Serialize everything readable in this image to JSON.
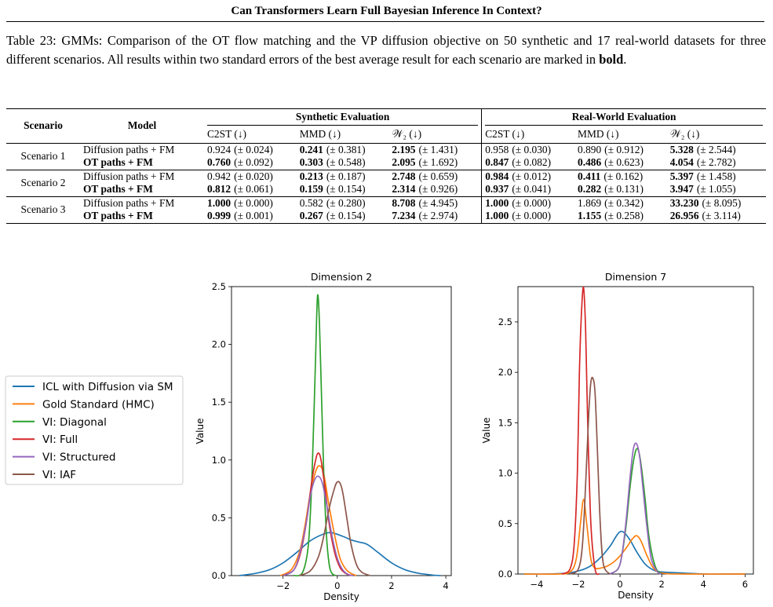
{
  "header": {
    "title": "Can Transformers Learn Full Bayesian Inference In Context?"
  },
  "caption": {
    "text_before": "Table 23: GMMs: Comparison of the OT flow matching and the VP diffusion objective on 50 synthetic and 17 real-world datasets for three different scenarios. All results within two standard errors of the best average result for each scenario are marked in ",
    "bold_word": "bold",
    "text_after": "."
  },
  "table": {
    "col_scenario": "Scenario",
    "col_model": "Model",
    "group_synthetic": "Synthetic Evaluation",
    "group_real": "Real-World Evaluation",
    "metrics": [
      "C2ST (↓)",
      "MMD (↓)",
      "𝒲₂ (↓)"
    ],
    "rows": [
      {
        "scenario": "Scenario 1",
        "model": "Diffusion paths + FM",
        "model_bold": false,
        "cells": [
          {
            "v": "0.924",
            "se": "(± 0.024)",
            "b": false
          },
          {
            "v": "0.241",
            "se": "(± 0.381)",
            "b": true
          },
          {
            "v": "2.195",
            "se": "(± 1.431)",
            "b": true
          },
          {
            "v": "0.958",
            "se": "(± 0.030)",
            "b": false
          },
          {
            "v": "0.890",
            "se": "(± 0.912)",
            "b": false
          },
          {
            "v": "5.328",
            "se": "(± 2.544)",
            "b": true
          }
        ]
      },
      {
        "scenario": "",
        "model": "OT paths + FM",
        "model_bold": true,
        "cells": [
          {
            "v": "0.760",
            "se": "(± 0.092)",
            "b": true
          },
          {
            "v": "0.303",
            "se": "(± 0.548)",
            "b": true
          },
          {
            "v": "2.095",
            "se": "(± 1.692)",
            "b": true
          },
          {
            "v": "0.847",
            "se": "(± 0.082)",
            "b": true
          },
          {
            "v": "0.486",
            "se": "(± 0.623)",
            "b": true
          },
          {
            "v": "4.054",
            "se": "(± 2.782)",
            "b": true
          }
        ]
      },
      {
        "scenario": "Scenario 2",
        "model": "Diffusion paths + FM",
        "model_bold": false,
        "cells": [
          {
            "v": "0.942",
            "se": "(± 0.020)",
            "b": false
          },
          {
            "v": "0.213",
            "se": "(± 0.187)",
            "b": true
          },
          {
            "v": "2.748",
            "se": "(± 0.659)",
            "b": true
          },
          {
            "v": "0.984",
            "se": "(± 0.012)",
            "b": true
          },
          {
            "v": "0.411",
            "se": "(± 0.162)",
            "b": true
          },
          {
            "v": "5.397",
            "se": "(± 1.458)",
            "b": true
          }
        ]
      },
      {
        "scenario": "",
        "model": "OT paths + FM",
        "model_bold": true,
        "cells": [
          {
            "v": "0.812",
            "se": "(± 0.061)",
            "b": true
          },
          {
            "v": "0.159",
            "se": "(± 0.154)",
            "b": true
          },
          {
            "v": "2.314",
            "se": "(± 0.926)",
            "b": true
          },
          {
            "v": "0.937",
            "se": "(± 0.041)",
            "b": true
          },
          {
            "v": "0.282",
            "se": "(± 0.131)",
            "b": true
          },
          {
            "v": "3.947",
            "se": "(± 1.055)",
            "b": true
          }
        ]
      },
      {
        "scenario": "Scenario 3",
        "model": "Diffusion paths + FM",
        "model_bold": false,
        "cells": [
          {
            "v": "1.000",
            "se": "(± 0.000)",
            "b": true
          },
          {
            "v": "0.582",
            "se": "(± 0.280)",
            "b": false
          },
          {
            "v": "8.708",
            "se": "(± 4.945)",
            "b": true
          },
          {
            "v": "1.000",
            "se": "(± 0.000)",
            "b": true
          },
          {
            "v": "1.869",
            "se": "(± 0.342)",
            "b": false
          },
          {
            "v": "33.230",
            "se": "(± 8.095)",
            "b": true
          }
        ]
      },
      {
        "scenario": "",
        "model": "OT paths + FM",
        "model_bold": true,
        "cells": [
          {
            "v": "0.999",
            "se": "(± 0.001)",
            "b": true
          },
          {
            "v": "0.267",
            "se": "(± 0.154)",
            "b": true
          },
          {
            "v": "7.234",
            "se": "(± 2.974)",
            "b": true
          },
          {
            "v": "1.000",
            "se": "(± 0.000)",
            "b": true
          },
          {
            "v": "1.155",
            "se": "(± 0.258)",
            "b": true
          },
          {
            "v": "26.956",
            "se": "(± 3.114)",
            "b": true
          }
        ]
      }
    ]
  },
  "legend": {
    "entries": [
      {
        "label": "ICL with Diffusion via SM",
        "color": "#1f77b4"
      },
      {
        "label": "Gold Standard (HMC)",
        "color": "#ff7f0e"
      },
      {
        "label": "VI: Diagonal",
        "color": "#2ca02c"
      },
      {
        "label": "VI: Full",
        "color": "#d62728"
      },
      {
        "label": "VI: Structured",
        "color": "#9467bd"
      },
      {
        "label": "VI: IAF",
        "color": "#8c564b"
      }
    ]
  },
  "chart_data": [
    {
      "type": "line",
      "title": "Dimension 2",
      "xlabel": "Density",
      "ylabel": "Value",
      "xlim": [
        -3.9,
        4.2
      ],
      "ylim": [
        0,
        2.5
      ],
      "xticks": [
        -2,
        0,
        2,
        4
      ],
      "yticks": [
        0.0,
        0.5,
        1.0,
        1.5,
        2.0,
        2.5
      ],
      "series": [
        {
          "name": "ICL with Diffusion via SM",
          "color": "#1f77b4",
          "x": [
            -3.6,
            -3.0,
            -2.5,
            -2.0,
            -1.5,
            -1.0,
            -0.5,
            -0.2,
            0.2,
            0.5,
            0.8,
            1.1,
            1.5,
            2.0,
            2.5,
            3.0,
            3.5,
            3.8
          ],
          "y": [
            0.0,
            0.02,
            0.05,
            0.11,
            0.2,
            0.3,
            0.36,
            0.37,
            0.34,
            0.31,
            0.29,
            0.27,
            0.2,
            0.11,
            0.05,
            0.02,
            0.005,
            0.0
          ]
        },
        {
          "name": "Gold Standard (HMC)",
          "color": "#ff7f0e",
          "x": [
            -2.1,
            -1.7,
            -1.4,
            -1.2,
            -1.0,
            -0.8,
            -0.65,
            -0.5,
            -0.3,
            -0.1,
            0.1,
            0.3,
            0.5,
            0.7
          ],
          "y": [
            0.0,
            0.05,
            0.2,
            0.42,
            0.7,
            0.9,
            0.95,
            0.88,
            0.6,
            0.35,
            0.15,
            0.06,
            0.02,
            0.0
          ]
        },
        {
          "name": "VI: Diagonal",
          "color": "#2ca02c",
          "x": [
            -1.6,
            -1.3,
            -1.1,
            -1.0,
            -0.9,
            -0.8,
            -0.73,
            -0.66,
            -0.6,
            -0.5,
            -0.4,
            -0.3,
            -0.2,
            -0.05
          ],
          "y": [
            0.0,
            0.02,
            0.2,
            0.5,
            1.1,
            1.9,
            2.42,
            2.2,
            1.7,
            0.9,
            0.35,
            0.1,
            0.02,
            0.0
          ]
        },
        {
          "name": "VI: Full",
          "color": "#d62728",
          "x": [
            -2.0,
            -1.6,
            -1.35,
            -1.15,
            -0.95,
            -0.8,
            -0.7,
            -0.6,
            -0.45,
            -0.3,
            -0.1,
            0.1,
            0.3,
            0.5
          ],
          "y": [
            0.0,
            0.05,
            0.2,
            0.45,
            0.8,
            1.0,
            1.06,
            1.0,
            0.75,
            0.45,
            0.2,
            0.07,
            0.02,
            0.0
          ]
        },
        {
          "name": "VI: Structured",
          "color": "#9467bd",
          "x": [
            -2.0,
            -1.6,
            -1.35,
            -1.15,
            -1.0,
            -0.85,
            -0.7,
            -0.55,
            -0.4,
            -0.2,
            0.0,
            0.2,
            0.4,
            0.6
          ],
          "y": [
            0.0,
            0.05,
            0.22,
            0.45,
            0.68,
            0.82,
            0.86,
            0.8,
            0.62,
            0.35,
            0.15,
            0.05,
            0.01,
            0.0
          ]
        },
        {
          "name": "VI: IAF",
          "color": "#8c564b",
          "x": [
            -1.4,
            -1.0,
            -0.7,
            -0.5,
            -0.3,
            -0.1,
            0.0,
            0.1,
            0.2,
            0.35,
            0.5,
            0.7,
            0.9,
            1.2
          ],
          "y": [
            0.0,
            0.04,
            0.16,
            0.34,
            0.58,
            0.76,
            0.81,
            0.8,
            0.72,
            0.5,
            0.28,
            0.1,
            0.03,
            0.0
          ]
        }
      ]
    },
    {
      "type": "line",
      "title": "Dimension 7",
      "xlabel": "Density",
      "ylabel": "Value",
      "xlim": [
        -4.9,
        6.4
      ],
      "ylim": [
        0,
        2.85
      ],
      "xticks": [
        -4,
        -2,
        0,
        2,
        4,
        6
      ],
      "yticks": [
        0.0,
        0.5,
        1.0,
        1.5,
        2.0,
        2.5
      ],
      "series": [
        {
          "name": "ICL with Diffusion via SM",
          "color": "#1f77b4",
          "x": [
            -4.6,
            -3.5,
            -2.5,
            -2.0,
            -1.5,
            -1.0,
            -0.5,
            -0.2,
            0.0,
            0.2,
            0.5,
            0.8,
            1.2,
            1.6,
            2.0,
            3.0,
            4.0,
            5.0,
            6.0
          ],
          "y": [
            0.0,
            0.0,
            0.01,
            0.03,
            0.07,
            0.15,
            0.27,
            0.37,
            0.42,
            0.41,
            0.33,
            0.22,
            0.1,
            0.04,
            0.02,
            0.01,
            0.0,
            0.0,
            0.0
          ]
        },
        {
          "name": "Gold Standard (HMC)",
          "color": "#ff7f0e",
          "x": [
            -4.6,
            -3.0,
            -2.4,
            -2.1,
            -1.9,
            -1.75,
            -1.6,
            -1.4,
            -1.2,
            -0.9,
            -0.6,
            -0.3,
            0.0,
            0.3,
            0.6,
            0.8,
            1.0,
            1.3,
            1.6,
            2.0,
            3.0,
            6.0
          ],
          "y": [
            0.0,
            0.0,
            0.02,
            0.15,
            0.5,
            0.74,
            0.5,
            0.15,
            0.06,
            0.06,
            0.08,
            0.12,
            0.18,
            0.26,
            0.35,
            0.38,
            0.33,
            0.18,
            0.06,
            0.01,
            0.0,
            0.0
          ]
        },
        {
          "name": "VI: Diagonal",
          "color": "#2ca02c",
          "x": [
            -0.5,
            -0.1,
            0.1,
            0.3,
            0.5,
            0.7,
            0.85,
            1.0,
            1.2,
            1.4,
            1.7,
            2.0
          ],
          "y": [
            0.0,
            0.05,
            0.2,
            0.5,
            0.9,
            1.18,
            1.24,
            1.1,
            0.75,
            0.35,
            0.07,
            0.0
          ]
        },
        {
          "name": "VI: Full",
          "color": "#d62728",
          "x": [
            -2.8,
            -2.4,
            -2.2,
            -2.05,
            -1.95,
            -1.85,
            -1.75,
            -1.65,
            -1.55,
            -1.4,
            -1.2,
            -1.0
          ],
          "y": [
            0.0,
            0.05,
            0.3,
            1.0,
            2.0,
            2.6,
            2.84,
            2.4,
            1.5,
            0.5,
            0.05,
            0.0
          ]
        },
        {
          "name": "VI: Structured",
          "color": "#9467bd",
          "x": [
            -0.5,
            -0.1,
            0.1,
            0.3,
            0.5,
            0.65,
            0.8,
            0.95,
            1.1,
            1.3,
            1.5,
            1.8,
            2.0
          ],
          "y": [
            0.0,
            0.05,
            0.2,
            0.55,
            1.0,
            1.25,
            1.29,
            1.15,
            0.85,
            0.45,
            0.15,
            0.02,
            0.0
          ]
        },
        {
          "name": "VI: IAF",
          "color": "#8c564b",
          "x": [
            -2.4,
            -2.0,
            -1.8,
            -1.65,
            -1.5,
            -1.4,
            -1.3,
            -1.2,
            -1.1,
            -0.95,
            -0.8,
            -0.5
          ],
          "y": [
            0.0,
            0.05,
            0.3,
            0.9,
            1.6,
            1.9,
            1.94,
            1.8,
            1.3,
            0.5,
            0.1,
            0.0
          ]
        }
      ]
    }
  ]
}
